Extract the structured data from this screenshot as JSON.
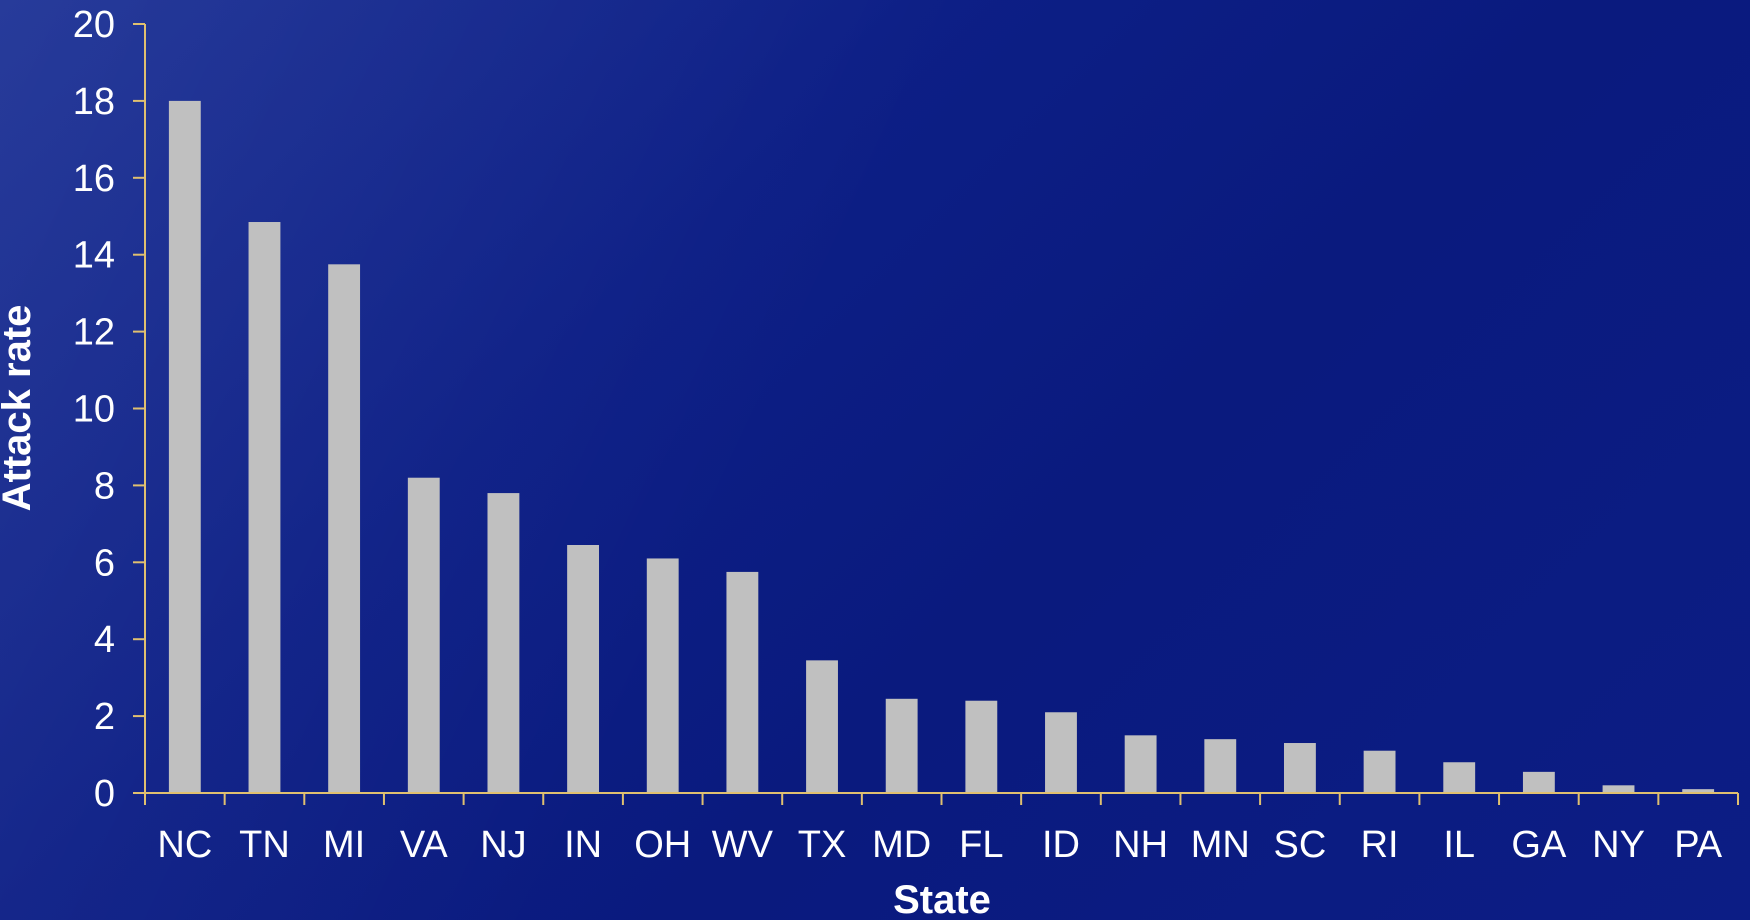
{
  "chart_data": {
    "type": "bar",
    "xlabel": "State",
    "ylabel": "Attack rate",
    "ylim": [
      0,
      20
    ],
    "yticks": [
      0,
      2,
      4,
      6,
      8,
      10,
      12,
      14,
      16,
      18,
      20
    ],
    "categories": [
      "NC",
      "TN",
      "MI",
      "VA",
      "NJ",
      "IN",
      "OH",
      "WV",
      "TX",
      "MD",
      "FL",
      "ID",
      "NH",
      "MN",
      "SC",
      "RI",
      "IL",
      "GA",
      "NY",
      "PA"
    ],
    "values": [
      18.0,
      14.85,
      13.75,
      8.2,
      7.8,
      6.45,
      6.1,
      5.75,
      3.45,
      2.45,
      2.4,
      2.1,
      1.5,
      1.4,
      1.3,
      1.1,
      0.8,
      0.55,
      0.2,
      0.1
    ],
    "grid": false,
    "legend": "none",
    "colors": {
      "bar": "#c0c0c0",
      "axis": "#e0c070",
      "text": "#ffffff"
    }
  }
}
